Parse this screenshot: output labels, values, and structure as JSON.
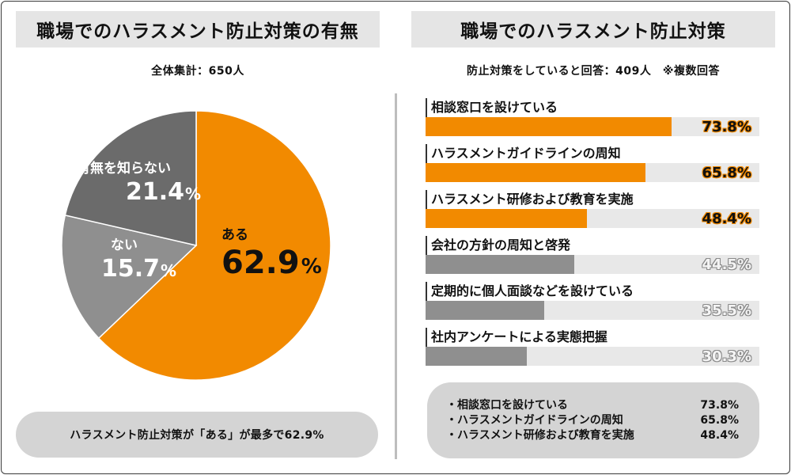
{
  "left": {
    "title": "職場でのハラスメント防止対策の有無",
    "subtitle": "全体集計：650人",
    "summary": "ハラスメント防止対策が「ある」が最多で62.9%"
  },
  "right": {
    "title": "職場でのハラスメント防止対策",
    "subtitle": "防止対策をしていると回答：409人　※複数回答",
    "summary": [
      {
        "label": "・相談窓口を設けている",
        "value": "73.8%"
      },
      {
        "label": "・ハラスメントガイドラインの周知",
        "value": "65.8%"
      },
      {
        "label": "・ハラスメント研修および教育を実施",
        "value": "48.4%"
      }
    ]
  },
  "colors": {
    "orange": "#f28a00",
    "dark_gray": "#6b6b6b",
    "mid_gray": "#8f8f8f",
    "track": "#e8e8e8"
  },
  "chart_data": [
    {
      "type": "pie",
      "title": "職場でのハラスメント防止対策の有無",
      "slices": [
        {
          "label": "ある",
          "value": 62.9,
          "display": "62.9",
          "unit": "%",
          "color": "#f28a00"
        },
        {
          "label": "ない",
          "value": 15.7,
          "display": "15.7",
          "unit": "%",
          "color": "#8f8f8f"
        },
        {
          "label": "有無を知らない",
          "value": 21.4,
          "display": "21.4",
          "unit": "%",
          "color": "#6b6b6b"
        }
      ]
    },
    {
      "type": "bar",
      "orientation": "horizontal",
      "title": "職場でのハラスメント防止対策",
      "xlim": [
        0,
        100
      ],
      "bars": [
        {
          "label": "相談窓口を設けている",
          "value": 73.8,
          "display": "73.8%",
          "color": "#f28a00"
        },
        {
          "label": "ハラスメントガイドラインの周知",
          "value": 65.8,
          "display": "65.8%",
          "color": "#f28a00"
        },
        {
          "label": "ハラスメント研修および教育を実施",
          "value": 48.4,
          "display": "48.4%",
          "color": "#f28a00"
        },
        {
          "label": "会社の方針の周知と啓発",
          "value": 44.5,
          "display": "44.5%",
          "color": "#8f8f8f"
        },
        {
          "label": "定期的に個人面談などを設けている",
          "value": 35.5,
          "display": "35.5%",
          "color": "#8f8f8f"
        },
        {
          "label": "社内アンケートによる実態把握",
          "value": 30.3,
          "display": "30.3%",
          "color": "#8f8f8f"
        }
      ]
    }
  ]
}
